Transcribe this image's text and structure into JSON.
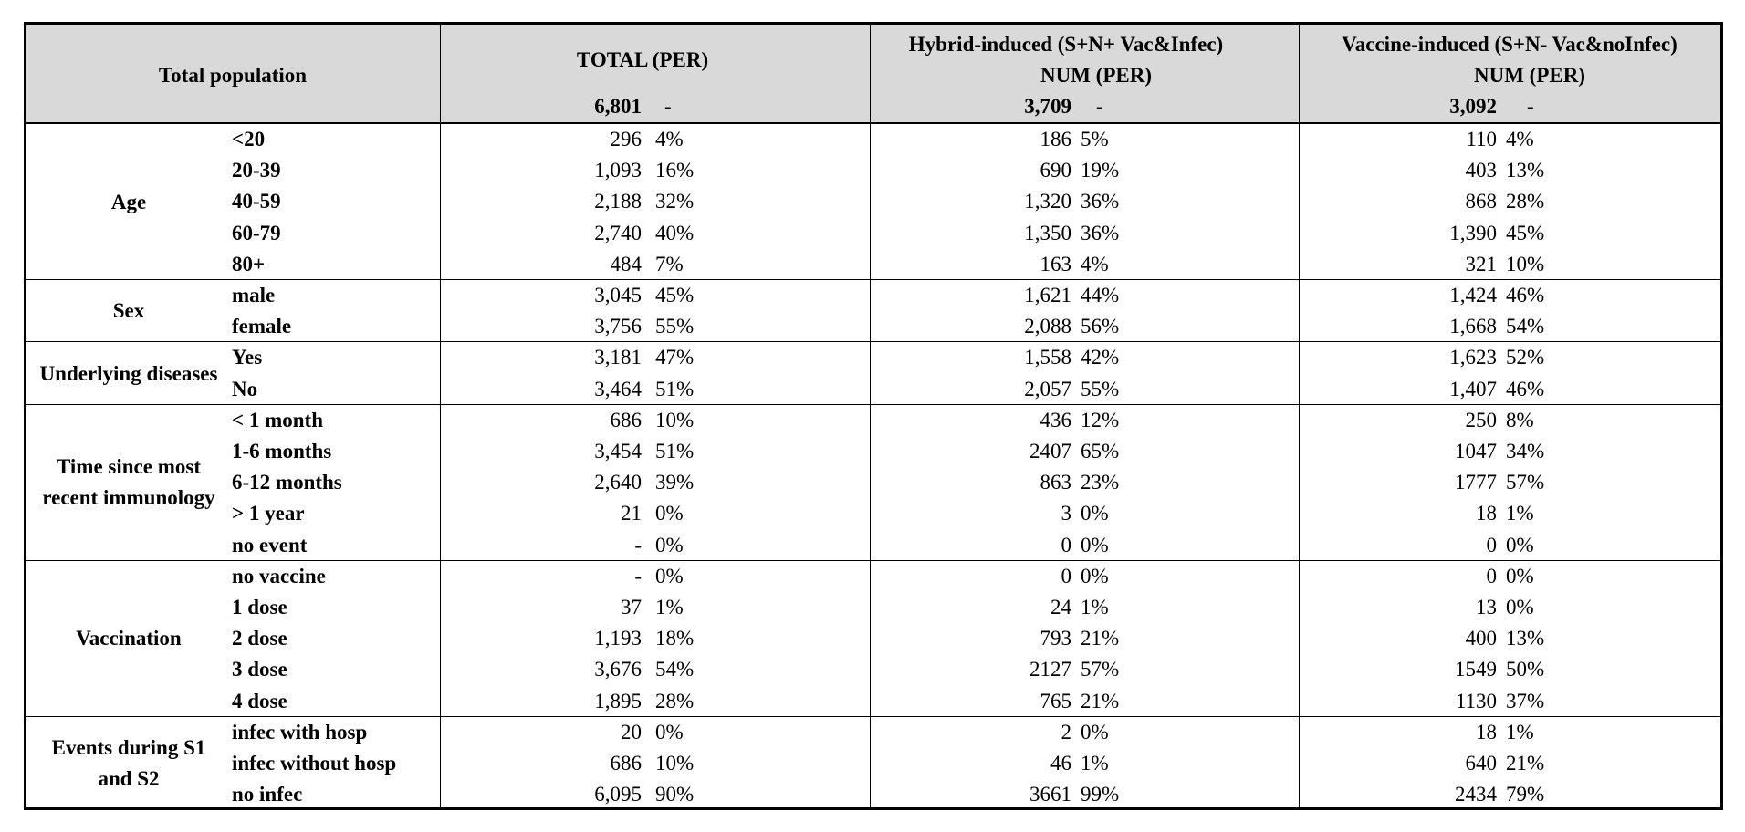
{
  "header": {
    "total_population": "Total population",
    "col1": {
      "title": "TOTAL (PER)",
      "num": "6,801",
      "per": "-"
    },
    "col2": {
      "title": "Hybrid-induced (S+N+ Vac&Infec)",
      "sub": "NUM (PER)",
      "num": "3,709",
      "per": "-"
    },
    "col3": {
      "title": "Vaccine-induced (S+N- Vac&noInfec)",
      "sub": "NUM (PER)",
      "num": "3,092",
      "per": "-"
    }
  },
  "groups": [
    {
      "label": "Age",
      "rows": [
        {
          "label": "<20",
          "total": [
            "296",
            "4%"
          ],
          "hybrid": [
            "186",
            "5%"
          ],
          "vaccine": [
            "110",
            "4%"
          ]
        },
        {
          "label": "20-39",
          "total": [
            "1,093",
            "16%"
          ],
          "hybrid": [
            "690",
            "19%"
          ],
          "vaccine": [
            "403",
            "13%"
          ]
        },
        {
          "label": "40-59",
          "total": [
            "2,188",
            "32%"
          ],
          "hybrid": [
            "1,320",
            "36%"
          ],
          "vaccine": [
            "868",
            "28%"
          ]
        },
        {
          "label": "60-79",
          "total": [
            "2,740",
            "40%"
          ],
          "hybrid": [
            "1,350",
            "36%"
          ],
          "vaccine": [
            "1,390",
            "45%"
          ]
        },
        {
          "label": "80+",
          "total": [
            "484",
            "7%"
          ],
          "hybrid": [
            "163",
            "4%"
          ],
          "vaccine": [
            "321",
            "10%"
          ]
        }
      ]
    },
    {
      "label": "Sex",
      "rows": [
        {
          "label": "male",
          "total": [
            "3,045",
            "45%"
          ],
          "hybrid": [
            "1,621",
            "44%"
          ],
          "vaccine": [
            "1,424",
            "46%"
          ]
        },
        {
          "label": "female",
          "total": [
            "3,756",
            "55%"
          ],
          "hybrid": [
            "2,088",
            "56%"
          ],
          "vaccine": [
            "1,668",
            "54%"
          ]
        }
      ]
    },
    {
      "label": "Underlying diseases",
      "rows": [
        {
          "label": "Yes",
          "total": [
            "3,181",
            "47%"
          ],
          "hybrid": [
            "1,558",
            "42%"
          ],
          "vaccine": [
            "1,623",
            "52%"
          ]
        },
        {
          "label": "No",
          "total": [
            "3,464",
            "51%"
          ],
          "hybrid": [
            "2,057",
            "55%"
          ],
          "vaccine": [
            "1,407",
            "46%"
          ]
        }
      ]
    },
    {
      "label": "Time since most recent immunology",
      "rows": [
        {
          "label": "< 1 month",
          "total": [
            "686",
            "10%"
          ],
          "hybrid": [
            "436",
            "12%"
          ],
          "vaccine": [
            "250",
            "8%"
          ]
        },
        {
          "label": "1-6 months",
          "total": [
            "3,454",
            "51%"
          ],
          "hybrid": [
            "2407",
            "65%"
          ],
          "vaccine": [
            "1047",
            "34%"
          ]
        },
        {
          "label": "6-12 months",
          "total": [
            "2,640",
            "39%"
          ],
          "hybrid": [
            "863",
            "23%"
          ],
          "vaccine": [
            "1777",
            "57%"
          ]
        },
        {
          "label": "> 1 year",
          "total": [
            "21",
            "0%"
          ],
          "hybrid": [
            "3",
            "0%"
          ],
          "vaccine": [
            "18",
            "1%"
          ]
        },
        {
          "label": "no event",
          "total": [
            "-",
            "0%"
          ],
          "hybrid": [
            "0",
            "0%"
          ],
          "vaccine": [
            "0",
            "0%"
          ]
        }
      ]
    },
    {
      "label": "Vaccination",
      "rows": [
        {
          "label": "no vaccine",
          "total": [
            "-",
            "0%"
          ],
          "hybrid": [
            "0",
            "0%"
          ],
          "vaccine": [
            "0",
            "0%"
          ]
        },
        {
          "label": "1 dose",
          "total": [
            "37",
            "1%"
          ],
          "hybrid": [
            "24",
            "1%"
          ],
          "vaccine": [
            "13",
            "0%"
          ]
        },
        {
          "label": "2 dose",
          "total": [
            "1,193",
            "18%"
          ],
          "hybrid": [
            "793",
            "21%"
          ],
          "vaccine": [
            "400",
            "13%"
          ]
        },
        {
          "label": "3 dose",
          "total": [
            "3,676",
            "54%"
          ],
          "hybrid": [
            "2127",
            "57%"
          ],
          "vaccine": [
            "1549",
            "50%"
          ]
        },
        {
          "label": "4 dose",
          "total": [
            "1,895",
            "28%"
          ],
          "hybrid": [
            "765",
            "21%"
          ],
          "vaccine": [
            "1130",
            "37%"
          ]
        }
      ]
    },
    {
      "label": "Events during S1 and S2",
      "rows": [
        {
          "label": "infec with hosp",
          "total": [
            "20",
            "0%"
          ],
          "hybrid": [
            "2",
            "0%"
          ],
          "vaccine": [
            "18",
            "1%"
          ]
        },
        {
          "label": "infec without hosp",
          "total": [
            "686",
            "10%"
          ],
          "hybrid": [
            "46",
            "1%"
          ],
          "vaccine": [
            "640",
            "21%"
          ]
        },
        {
          "label": "no infec",
          "total": [
            "6,095",
            "90%"
          ],
          "hybrid": [
            "3661",
            "99%"
          ],
          "vaccine": [
            "2434",
            "79%"
          ]
        }
      ]
    }
  ]
}
